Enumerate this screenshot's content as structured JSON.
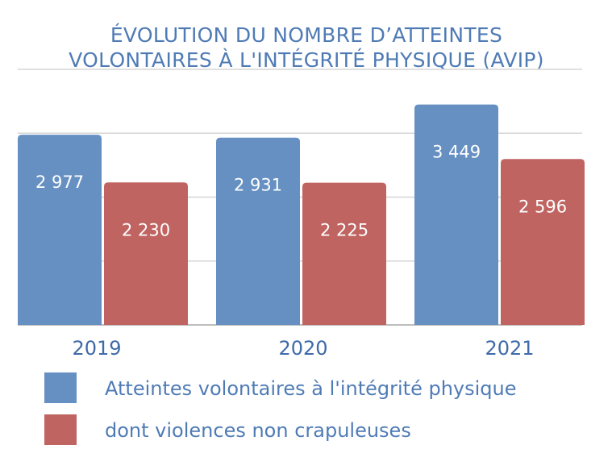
{
  "chart_data": {
    "type": "bar",
    "title": [
      "ÉVOLUTION DU NOMBRE D’ATTEINTES",
      "VOLONTAIRES À L'INTÉGRITÉ PHYSIQUE (AVIP)"
    ],
    "categories": [
      "2019",
      "2020",
      "2021"
    ],
    "series": [
      {
        "name": "Atteintes volontaires à l'intégrité physique",
        "values": [
          2977,
          2931,
          3449
        ],
        "labels": [
          "2 977",
          "2 931",
          "3 449"
        ],
        "color": "#6690c2"
      },
      {
        "name": "dont violences non crapuleuses",
        "values": [
          2230,
          2225,
          2596
        ],
        "labels": [
          "2 230",
          "2 225",
          "2 596"
        ],
        "color": "#c06462"
      }
    ],
    "ylim": [
      0,
      4000
    ],
    "grid": true,
    "legend": "bottom"
  }
}
